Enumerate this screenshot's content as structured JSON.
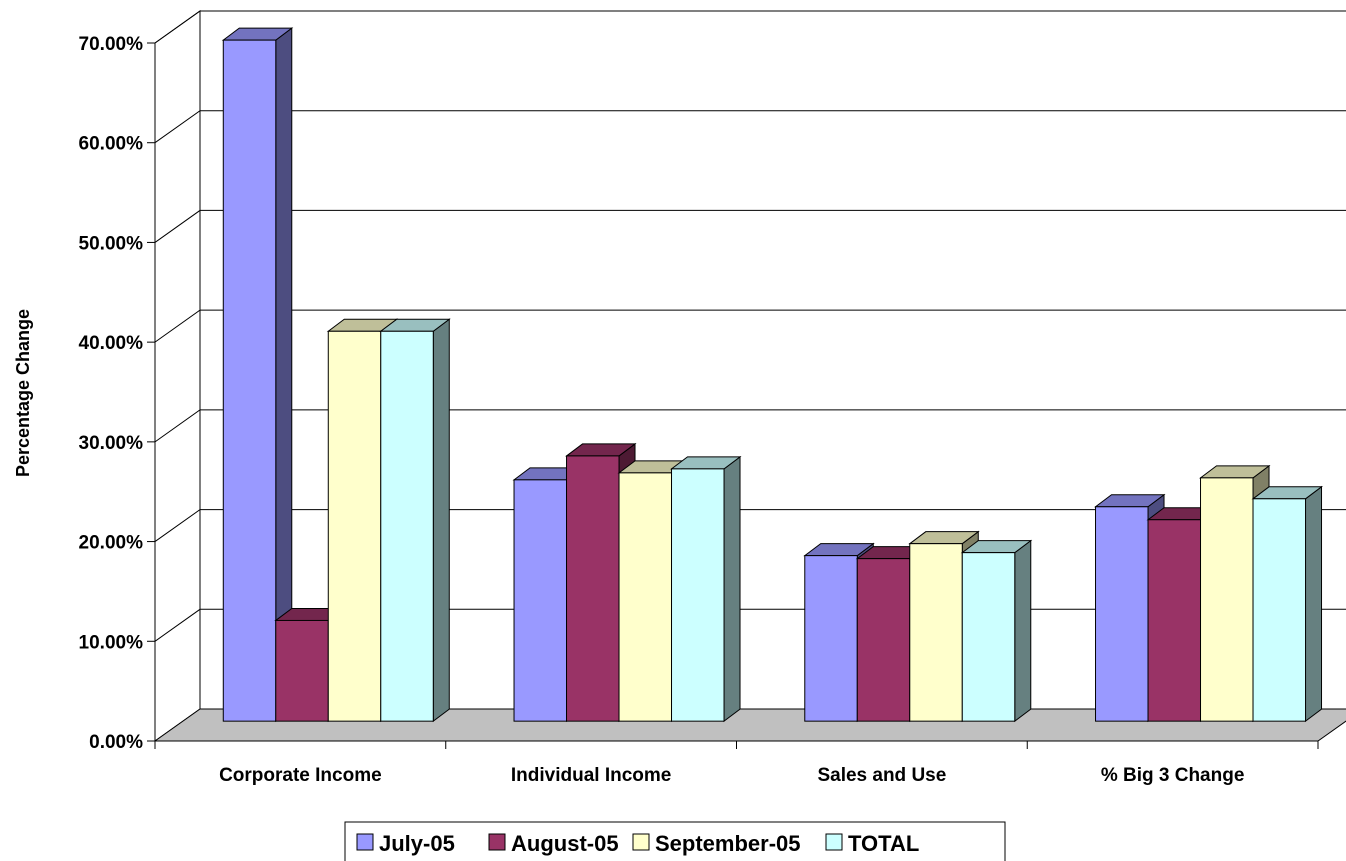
{
  "chart_data": {
    "type": "bar",
    "ylabel": "Percentage Change",
    "xlabel": "",
    "ylim": [
      0,
      70
    ],
    "yticks": [
      0,
      10,
      20,
      30,
      40,
      50,
      60,
      70
    ],
    "ytick_labels": [
      "0.00%",
      "10.00%",
      "20.00%",
      "30.00%",
      "40.00%",
      "50.00%",
      "60.00%",
      "70.00%"
    ],
    "categories": [
      "Corporate Income",
      "Individual Income",
      "Sales and Use",
      "% Big 3 Change"
    ],
    "series": [
      {
        "name": "July-05",
        "color": "#9999FF",
        "values": [
          68.3,
          24.2,
          16.6,
          21.5
        ]
      },
      {
        "name": "August-05",
        "color": "#993366",
        "values": [
          10.1,
          26.6,
          16.3,
          20.2
        ]
      },
      {
        "name": "September-05",
        "color": "#FFFFCC",
        "values": [
          39.1,
          24.9,
          17.8,
          24.4
        ]
      },
      {
        "name": "TOTAL",
        "color": "#CCFFFF",
        "values": [
          39.1,
          25.3,
          16.9,
          22.3
        ]
      }
    ],
    "grid": true,
    "legend_position": "bottom",
    "three_d": true
  }
}
